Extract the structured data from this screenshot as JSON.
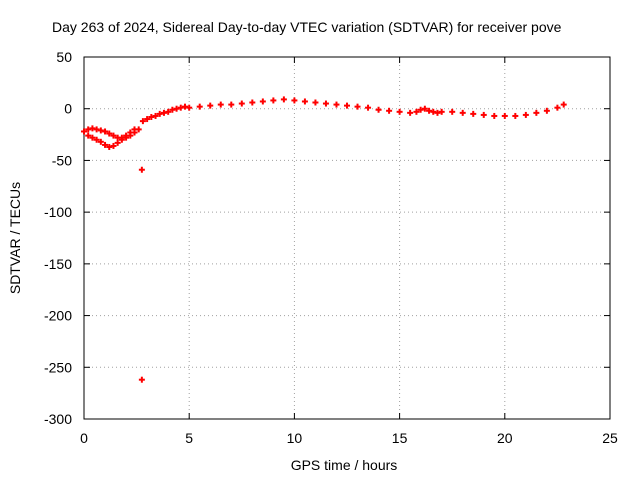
{
  "chart_data": {
    "type": "scatter",
    "title": "Day 263 of 2024, Sidereal Day-to-day VTEC variation (SDTVAR) for receiver pove",
    "xlabel": "GPS time / hours",
    "ylabel": "SDTVAR / TECUs",
    "xlim": [
      0,
      25
    ],
    "ylim": [
      -300,
      50
    ],
    "xticks": [
      0,
      5,
      10,
      15,
      20,
      25
    ],
    "yticks": [
      50,
      0,
      -50,
      -100,
      -150,
      -200,
      -250,
      -300
    ],
    "grid": true,
    "marker_color": "#ff0000",
    "series": [
      {
        "name": "SDTVAR",
        "x": [
          0.0,
          0.2,
          0.4,
          0.6,
          0.8,
          1.0,
          1.2,
          1.4,
          1.6,
          1.8,
          2.0,
          2.2,
          2.4,
          2.6,
          0.2,
          0.4,
          0.6,
          0.8,
          1.0,
          1.2,
          1.4,
          1.6,
          1.8,
          2.0,
          2.2,
          2.4,
          2.8,
          3.0,
          3.2,
          3.4,
          3.6,
          3.8,
          4.0,
          4.2,
          4.4,
          4.6,
          4.8,
          5.0,
          5.5,
          6.0,
          6.5,
          7.0,
          7.5,
          8.0,
          8.5,
          9.0,
          9.5,
          10.0,
          10.5,
          11.0,
          11.5,
          12.0,
          12.5,
          13.0,
          13.5,
          14.0,
          14.5,
          15.0,
          15.5,
          15.8,
          16.0,
          16.2,
          16.4,
          16.6,
          16.8,
          17.0,
          17.5,
          18.0,
          18.5,
          19.0,
          19.5,
          20.0,
          20.5,
          21.0,
          21.5,
          22.0,
          22.5,
          22.8,
          2.75,
          2.75
        ],
        "y": [
          -22,
          -26,
          -28,
          -30,
          -32,
          -35,
          -37,
          -36,
          -33,
          -30,
          -28,
          -26,
          -23,
          -20,
          -20,
          -19,
          -20,
          -21,
          -22,
          -24,
          -26,
          -28,
          -28,
          -26,
          -23,
          -20,
          -12,
          -10,
          -8,
          -7,
          -5,
          -4,
          -3,
          -1,
          0,
          1,
          2,
          1,
          2,
          3,
          4,
          4,
          5,
          6,
          7,
          8,
          9,
          8,
          7,
          6,
          5,
          4,
          3,
          2,
          1,
          -1,
          -2,
          -3,
          -4,
          -3,
          -1,
          0,
          -2,
          -3,
          -4,
          -3,
          -3,
          -4,
          -5,
          -6,
          -7,
          -7,
          -7,
          -6,
          -4,
          -2,
          1,
          4,
          -59,
          -262
        ]
      }
    ]
  }
}
